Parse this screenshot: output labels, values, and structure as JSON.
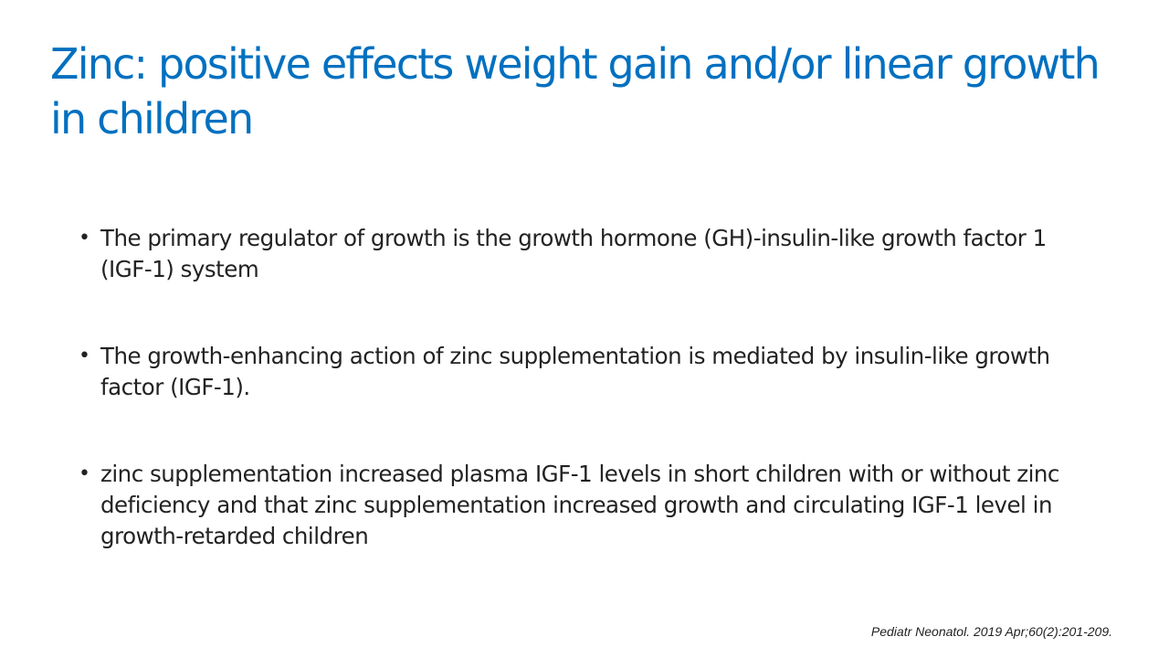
{
  "slide": {
    "title": "Zinc: positive effects weight gain and/or linear growth in children",
    "bullets": [
      "The primary regulator of growth is the growth hormone (GH)-insulin-like growth factor 1 (IGF-1) system",
      "The growth-enhancing action of zinc supplementation is mediated by insulin-like growth factor (IGF-1).",
      "zinc supplementation increased plasma IGF-1 levels in short children with or without zinc deficiency and that zinc supplementation increased growth and circulating IGF-1 level in growth-retarded children"
    ],
    "bullet_symbol": "•",
    "citation": "Pediatr Neonatol. 2019 Apr;60(2):201-209."
  },
  "colors": {
    "title": "#0070c0",
    "body_text": "#222222",
    "background": "#ffffff"
  }
}
